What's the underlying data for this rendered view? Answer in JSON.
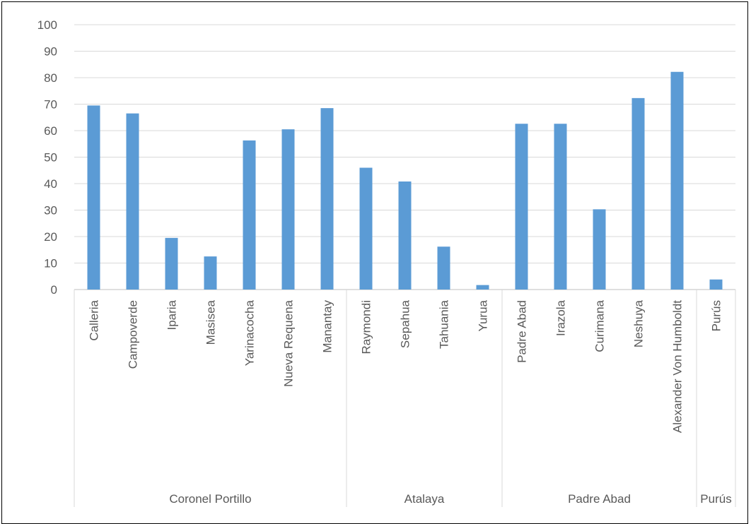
{
  "chart_data": {
    "type": "bar",
    "title": "",
    "xlabel": "",
    "ylabel": "",
    "ylim": [
      0,
      100
    ],
    "yticks": [
      0,
      10,
      20,
      30,
      40,
      50,
      60,
      70,
      80,
      90,
      100
    ],
    "grid": true,
    "bar_color": "#5B9BD5",
    "categories": [
      "Calleria",
      "Campoverde",
      "Iparia",
      "Masisea",
      "Yarinacocha",
      "Nueva Requena",
      "Manantay",
      "Raymondi",
      "Sepahua",
      "Tahuania",
      "Yurua",
      "Padre Abad",
      "Irazola",
      "Curimana",
      "Neshuya",
      "Alexander Von Humboldt",
      "Purús"
    ],
    "values": [
      69.5,
      66.5,
      19.5,
      12.5,
      56.3,
      60.5,
      68.5,
      46.0,
      40.8,
      16.2,
      1.7,
      62.6,
      62.6,
      30.3,
      72.3,
      82.2,
      3.8
    ],
    "groups": [
      {
        "name": "Coronel Portillo",
        "count": 7
      },
      {
        "name": "Atalaya",
        "count": 4
      },
      {
        "name": "Padre Abad",
        "count": 5
      },
      {
        "name": "Purús",
        "count": 1
      }
    ]
  }
}
